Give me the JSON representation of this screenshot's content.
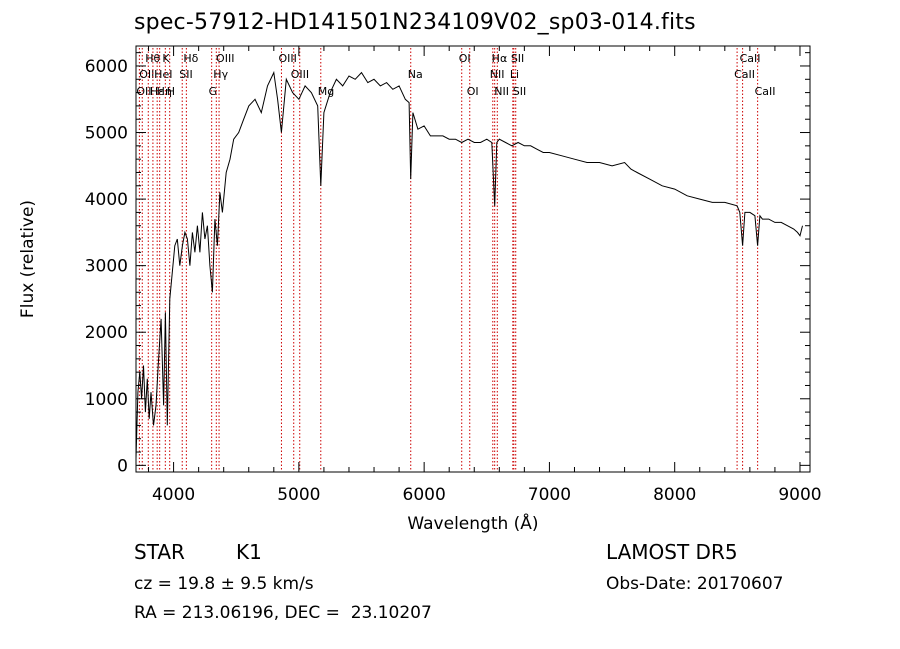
{
  "chart_data": {
    "type": "line",
    "title": "spec-57912-HD141501N234109V02_sp03-014.fits",
    "xlabel": "Wavelength (Å)",
    "ylabel": "Flux (relative)",
    "xlim": [
      3700,
      9080
    ],
    "ylim": [
      -100,
      6300
    ],
    "xticks": [
      4000,
      5000,
      6000,
      7000,
      8000,
      9000
    ],
    "yticks": [
      0,
      1000,
      2000,
      3000,
      4000,
      5000,
      6000
    ],
    "line_color": "#000000",
    "marker_color": "#cc0000",
    "series": [
      {
        "x": [
          3700,
          3715,
          3730,
          3745,
          3760,
          3775,
          3790,
          3805,
          3820,
          3840,
          3860,
          3880,
          3900,
          3920,
          3935,
          3950,
          3970,
          3990,
          4010,
          4030,
          4050,
          4070,
          4090,
          4110,
          4130,
          4150,
          4170,
          4190,
          4210,
          4230,
          4250,
          4270,
          4290,
          4310,
          4330,
          4350,
          4370,
          4390,
          4420,
          4450,
          4480,
          4520,
          4560,
          4600,
          4650,
          4700,
          4750,
          4800,
          4830,
          4861,
          4900,
          4950,
          5000,
          5050,
          5100,
          5150,
          5175,
          5200,
          5250,
          5300,
          5350,
          5400,
          5450,
          5500,
          5550,
          5600,
          5650,
          5700,
          5750,
          5800,
          5850,
          5880,
          5893,
          5910,
          5950,
          6000,
          6050,
          6100,
          6150,
          6200,
          6250,
          6300,
          6350,
          6400,
          6450,
          6500,
          6540,
          6563,
          6580,
          6600,
          6650,
          6700,
          6750,
          6800,
          6850,
          6900,
          6950,
          7000,
          7100,
          7200,
          7300,
          7400,
          7500,
          7600,
          7650,
          7700,
          7800,
          7900,
          8000,
          8100,
          8200,
          8300,
          8400,
          8498,
          8520,
          8542,
          8560,
          8600,
          8640,
          8662,
          8680,
          8700,
          8750,
          8800,
          8850,
          8900,
          8950,
          8980,
          9000,
          9020
        ],
        "y": [
          100,
          1100,
          1400,
          1000,
          1500,
          800,
          1300,
          700,
          1100,
          600,
          900,
          1600,
          2200,
          900,
          2300,
          600,
          2500,
          2900,
          3300,
          3400,
          3000,
          3300,
          3500,
          3400,
          3000,
          3500,
          3200,
          3600,
          3200,
          3800,
          3400,
          3600,
          3000,
          2600,
          3700,
          3300,
          4100,
          3800,
          4400,
          4600,
          4900,
          5000,
          5200,
          5400,
          5500,
          5300,
          5700,
          5900,
          5500,
          5000,
          5800,
          5600,
          5500,
          5700,
          5600,
          5400,
          4200,
          5300,
          5600,
          5800,
          5700,
          5850,
          5800,
          5900,
          5750,
          5800,
          5700,
          5750,
          5650,
          5700,
          5500,
          5450,
          4300,
          5300,
          5050,
          5100,
          4950,
          4950,
          4950,
          4900,
          4900,
          4850,
          4900,
          4850,
          4850,
          4900,
          4850,
          3900,
          4850,
          4900,
          4850,
          4800,
          4850,
          4800,
          4800,
          4750,
          4700,
          4700,
          4650,
          4600,
          4550,
          4550,
          4500,
          4550,
          4450,
          4400,
          4300,
          4200,
          4150,
          4050,
          4000,
          3950,
          3950,
          3900,
          3800,
          3300,
          3800,
          3800,
          3750,
          3300,
          3750,
          3700,
          3700,
          3650,
          3650,
          3600,
          3550,
          3500,
          3450,
          3600
        ]
      }
    ],
    "line_markers": [
      {
        "wl": 3727,
        "label": "OII",
        "row": 3,
        "align": "left"
      },
      {
        "wl": 3750,
        "label": "OII",
        "row": 2,
        "align": "left"
      },
      {
        "wl": 3798,
        "label": "Hθ",
        "row": 1,
        "align": "left"
      },
      {
        "wl": 3835,
        "label": "Hε",
        "row": 3,
        "align": "left"
      },
      {
        "wl": 3869,
        "label": "HeI",
        "row": 2,
        "align": "left"
      },
      {
        "wl": 3889,
        "label": "Hη",
        "row": 3,
        "align": "left"
      },
      {
        "wl": 3934,
        "label": "K",
        "row": 1,
        "align": "left"
      },
      {
        "wl": 3969,
        "label": "H",
        "row": 3,
        "align": "left"
      },
      {
        "wl": 4069,
        "label": "SII",
        "row": 2,
        "align": "left"
      },
      {
        "wl": 4102,
        "label": "Hδ",
        "row": 1,
        "align": "left"
      },
      {
        "wl": 4304,
        "label": "G",
        "row": 3,
        "align": "left"
      },
      {
        "wl": 4341,
        "label": "Hγ",
        "row": 2,
        "align": "left"
      },
      {
        "wl": 4363,
        "label": "OIII",
        "row": 1,
        "align": "left"
      },
      {
        "wl": 4861,
        "label": "OIII",
        "row": 1,
        "align": "left"
      },
      {
        "wl": 4959,
        "label": "OIII",
        "row": 2,
        "align": "left"
      },
      {
        "wl": 5007,
        "label": "",
        "row": 0,
        "align": "left"
      },
      {
        "wl": 5175,
        "label": "Mg",
        "row": 3,
        "align": "left"
      },
      {
        "wl": 5893,
        "label": "Na",
        "row": 2,
        "align": "left"
      },
      {
        "wl": 6300,
        "label": "OI",
        "row": 1,
        "align": "left"
      },
      {
        "wl": 6364,
        "label": "OI",
        "row": 3,
        "align": "left"
      },
      {
        "wl": 6548,
        "label": "NII",
        "row": 2,
        "align": "left"
      },
      {
        "wl": 6563,
        "label": "Hα",
        "row": 1,
        "align": "left"
      },
      {
        "wl": 6584,
        "label": "NII",
        "row": 3,
        "align": "left"
      },
      {
        "wl": 6708,
        "label": "Li",
        "row": 2,
        "align": "left"
      },
      {
        "wl": 6716,
        "label": "SII",
        "row": 1,
        "align": "left"
      },
      {
        "wl": 6731,
        "label": "SII",
        "row": 3,
        "align": "left"
      },
      {
        "wl": 8498,
        "label": "CaII",
        "row": 2,
        "align": "left"
      },
      {
        "wl": 8542,
        "label": "CaII",
        "row": 1,
        "align": "left"
      },
      {
        "wl": 8662,
        "label": "CaII",
        "row": 3,
        "align": "left"
      }
    ]
  },
  "info": {
    "object_type": "STAR",
    "subclass": "K1",
    "survey": "LAMOST DR5",
    "cz_line": "cz = 19.8 ± 9.5 km/s",
    "obs_date": "Obs-Date: 20170607",
    "coords": "RA = 213.06196, DEC =  23.10207"
  }
}
